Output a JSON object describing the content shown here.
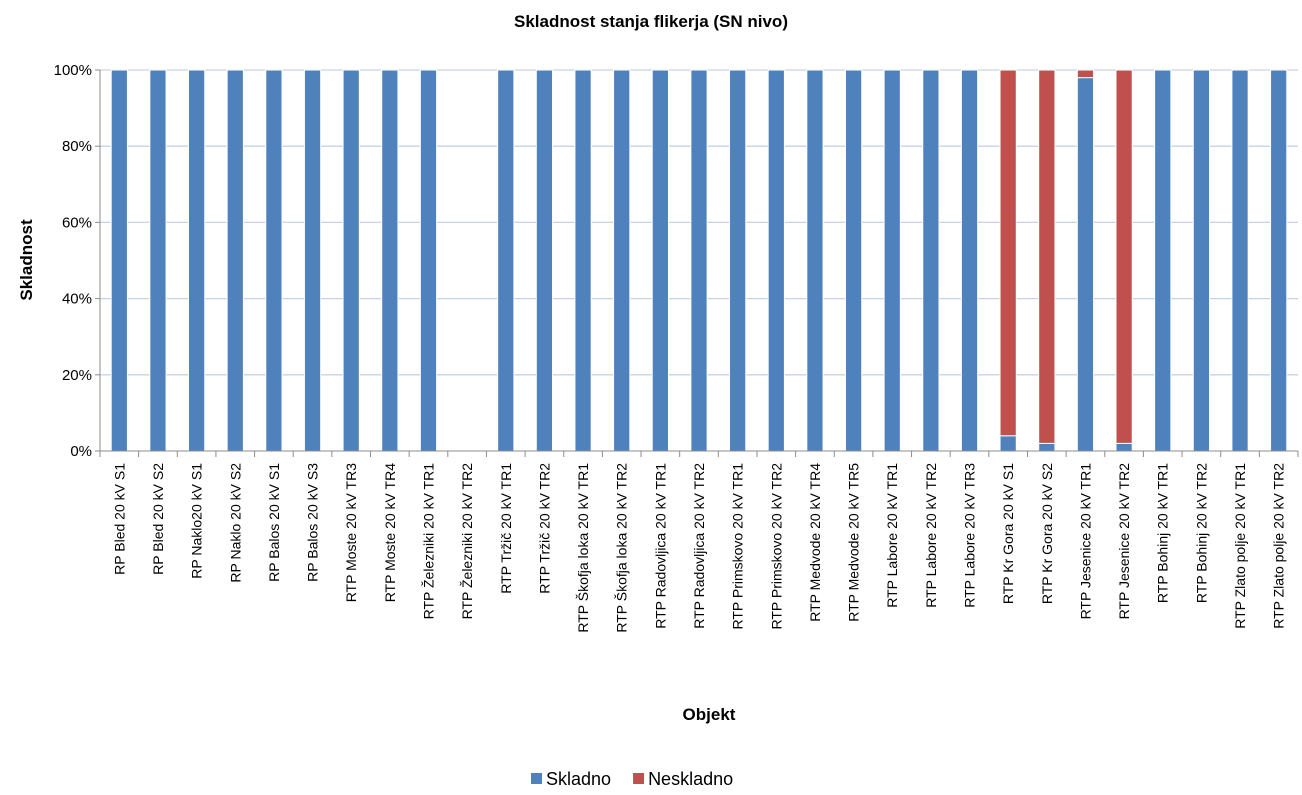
{
  "chart_data": {
    "type": "bar",
    "stacked": true,
    "percent": true,
    "title": "Skladnost stanja flikerja (SN nivo)",
    "xlabel": "Objekt",
    "ylabel": "Skladnost",
    "ylim": [
      0,
      100
    ],
    "yticks": [
      "0%",
      "20%",
      "40%",
      "60%",
      "80%",
      "100%"
    ],
    "grid": true,
    "legend_position": "bottom",
    "categories": [
      "RP Bled 20 kV S1",
      "RP Bled 20 kV S2",
      "RP Naklo20 kV  S1",
      "RP Naklo 20 kV S2",
      "RP Balos 20 kV S1",
      "RP Balos 20 kV S3",
      "RTP Moste 20 kV TR3",
      "RTP Moste 20 kV TR4",
      "RTP Železniki 20 kV TR1",
      "RTP Železniki 20 kV TR2",
      "RTP Tržič 20 kV TR1",
      "RTP Tržič 20 kV TR2",
      "RTP Škofja loka 20 kV TR1",
      "RTP Škofja loka 20 kV TR2",
      "RTP Radovljica 20 kV TR1",
      "RTP Radovljica 20 kV TR2",
      "RTP Primskovo 20 kV TR1",
      "RTP Primskovo 20 kV TR2",
      "RTP Medvode 20 kV TR4",
      "RTP Medvode 20 kV TR5",
      "RTP Labore 20 kV TR1",
      "RTP Labore 20 kV TR2",
      "RTP Labore 20 kV TR3",
      "RTP Kr Gora 20 kV S1",
      "RTP Kr Gora 20 kV S2",
      "RTP Jesenice 20 kV TR1",
      "RTP Jesenice 20 kV TR2",
      "RTP Bohinj 20 kV TR1",
      "RTP Bohinj 20 kV TR2",
      "RTP Zlato polje 20 kV TR1",
      "RTP Zlato polje 20 kV TR2"
    ],
    "series": [
      {
        "name": "Skladno",
        "color": "#4f81bd",
        "values": [
          100,
          100,
          100,
          100,
          100,
          100,
          100,
          100,
          100,
          0,
          100,
          100,
          100,
          100,
          100,
          100,
          100,
          100,
          100,
          100,
          100,
          100,
          100,
          4,
          2,
          98,
          2,
          100,
          100,
          100,
          100
        ]
      },
      {
        "name": "Neskladno",
        "color": "#c0504d",
        "values": [
          0,
          0,
          0,
          0,
          0,
          0,
          0,
          0,
          0,
          0,
          0,
          0,
          0,
          0,
          0,
          0,
          0,
          0,
          0,
          0,
          0,
          0,
          0,
          96,
          98,
          2,
          98,
          0,
          0,
          0,
          0
        ]
      }
    ]
  }
}
